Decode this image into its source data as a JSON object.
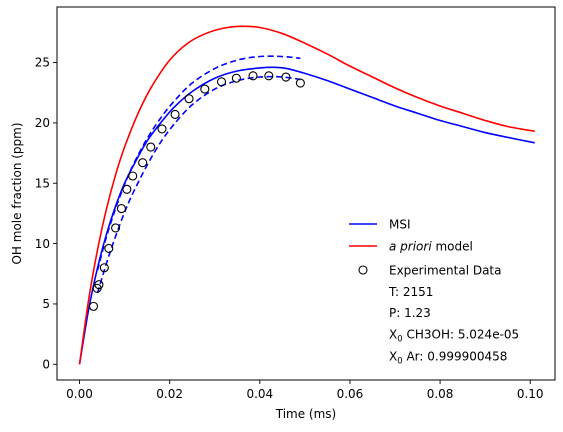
{
  "chart_data": {
    "type": "line",
    "xlabel": "Time (ms)",
    "ylabel": "OH mole fraction (ppm)",
    "xlim": [
      -0.005,
      0.1055
    ],
    "ylim": [
      -1.3,
      29.6
    ],
    "xticks": [
      0.0,
      0.02,
      0.04,
      0.06,
      0.08,
      0.1
    ],
    "xtick_labels": [
      "0.00",
      "0.02",
      "0.04",
      "0.06",
      "0.08",
      "0.10"
    ],
    "yticks": [
      0,
      5,
      10,
      15,
      20,
      25
    ],
    "ytick_labels": [
      "0",
      "5",
      "10",
      "15",
      "20",
      "25"
    ],
    "grid": false,
    "legend_placement": "lower-right",
    "series": [
      {
        "name": "MSI",
        "color": "#0000ff",
        "style": "solid",
        "x": [
          0,
          0.002,
          0.004,
          0.006,
          0.008,
          0.01,
          0.012,
          0.015,
          0.018,
          0.021,
          0.025,
          0.03,
          0.035,
          0.04,
          0.043,
          0.046,
          0.05,
          0.055,
          0.06,
          0.065,
          0.07,
          0.075,
          0.08,
          0.085,
          0.09,
          0.095,
          0.101
        ],
        "y": [
          0,
          4.5,
          8.0,
          10.8,
          13.1,
          15.0,
          16.5,
          18.5,
          20.0,
          21.3,
          22.6,
          23.7,
          24.3,
          24.55,
          24.6,
          24.5,
          24.1,
          23.5,
          22.8,
          22.1,
          21.4,
          20.8,
          20.2,
          19.7,
          19.2,
          18.8,
          18.35
        ]
      },
      {
        "name": "a priori model",
        "legend_label_italic": "a priori",
        "legend_label_rest": " model",
        "color": "#ff0000",
        "style": "solid",
        "x": [
          0,
          0.002,
          0.004,
          0.006,
          0.008,
          0.01,
          0.013,
          0.016,
          0.02,
          0.024,
          0.028,
          0.032,
          0.036,
          0.04,
          0.045,
          0.05,
          0.055,
          0.06,
          0.065,
          0.07,
          0.075,
          0.08,
          0.085,
          0.09,
          0.095,
          0.101
        ],
        "y": [
          0,
          5.3,
          9.5,
          12.9,
          15.7,
          18.0,
          20.8,
          23.0,
          25.2,
          26.6,
          27.4,
          27.85,
          28.0,
          27.9,
          27.4,
          26.6,
          25.7,
          24.7,
          23.8,
          22.9,
          22.1,
          21.4,
          20.8,
          20.2,
          19.7,
          19.3
        ]
      },
      {
        "name": "MSI upper bound",
        "color": "#0000ff",
        "style": "dashed",
        "x": [
          0.004,
          0.006,
          0.008,
          0.01,
          0.012,
          0.015,
          0.018,
          0.021,
          0.025,
          0.03,
          0.035,
          0.04,
          0.045,
          0.049
        ],
        "y": [
          7.8,
          10.6,
          12.9,
          14.9,
          16.6,
          18.7,
          20.4,
          21.8,
          23.3,
          24.5,
          25.2,
          25.5,
          25.5,
          25.35
        ]
      },
      {
        "name": "MSI lower bound",
        "color": "#0000ff",
        "style": "dashed",
        "x": [
          0.004,
          0.006,
          0.008,
          0.01,
          0.012,
          0.015,
          0.018,
          0.021,
          0.025,
          0.03,
          0.035,
          0.04,
          0.045,
          0.049
        ],
        "y": [
          5.9,
          8.4,
          10.6,
          12.6,
          14.3,
          16.5,
          18.4,
          19.9,
          21.5,
          22.8,
          23.5,
          23.8,
          23.8,
          23.6
        ]
      }
    ],
    "experimental": {
      "name": "Experimental Data",
      "x": [
        0.0031,
        0.0039,
        0.0043,
        0.0055,
        0.0065,
        0.008,
        0.0093,
        0.0105,
        0.0118,
        0.014,
        0.0158,
        0.0183,
        0.0212,
        0.0243,
        0.0278,
        0.0315,
        0.0348,
        0.0385,
        0.042,
        0.0458,
        0.049
      ],
      "y": [
        4.8,
        6.3,
        6.6,
        8.0,
        9.6,
        11.3,
        12.9,
        14.5,
        15.6,
        16.7,
        18.0,
        19.5,
        20.7,
        22.0,
        22.8,
        23.4,
        23.7,
        23.9,
        23.9,
        23.8,
        23.3
      ]
    },
    "legend_notes": [
      {
        "kind": "plain",
        "text": "T: 2151"
      },
      {
        "kind": "plain",
        "text": "P: 1.23"
      },
      {
        "kind": "sub",
        "text_a": "X",
        "sub": "0",
        "text_b": " CH3OH: 5.024e-05"
      },
      {
        "kind": "sub",
        "text_a": "X",
        "sub": "0",
        "text_b": " Ar: 0.999900458"
      }
    ]
  }
}
